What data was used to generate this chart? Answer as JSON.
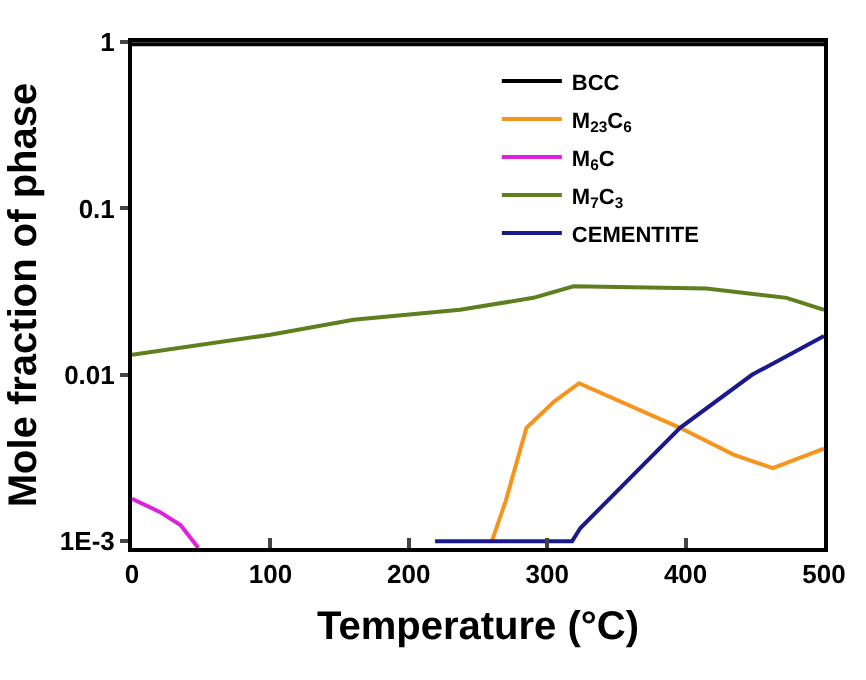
{
  "chart_data": {
    "type": "line",
    "xlabel": "Temperature (°C)",
    "ylabel": "Mole fraction of phase",
    "log": "y",
    "xlim": [
      0,
      500
    ],
    "xticks": [
      0,
      100,
      200,
      300,
      400,
      500
    ],
    "ylim": [
      0.00091,
      1
    ],
    "yticks": [
      {
        "value": 0.001,
        "label": "1E-3"
      },
      0.01,
      0.1,
      1
    ],
    "grid": false,
    "legend": "top right",
    "marker": "none",
    "line_style": "solid",
    "series": [
      {
        "name": "BCC",
        "color": "#000000",
        "x": [
          0,
          500
        ],
        "values": [
          0.97,
          0.97
        ]
      },
      {
        "name": "M$_{23}$C$_{6}$",
        "color": "#f7941d",
        "x": [
          260,
          270,
          285,
          305,
          323,
          396,
          435,
          463,
          500
        ],
        "values": [
          0.001,
          0.00174,
          0.0048,
          0.0069,
          0.0089,
          0.0048,
          0.0033,
          0.00275,
          0.0036
        ]
      },
      {
        "name": "M$_{6}$C",
        "color": "#e020e0",
        "x": [
          0,
          20,
          35,
          48
        ],
        "values": [
          0.0018,
          0.0015,
          0.00125,
          0.00091
        ]
      },
      {
        "name": "M$_{7}$C$_{3}$",
        "color": "#5f7f1f",
        "x": [
          0,
          100,
          160,
          237,
          290,
          319,
          415,
          473,
          500
        ],
        "values": [
          0.0132,
          0.0174,
          0.0214,
          0.0246,
          0.029,
          0.034,
          0.033,
          0.029,
          0.0246
        ]
      },
      {
        "name": "CEMENTITE",
        "color": "#1a1a8c",
        "x": [
          219,
          318,
          324,
          396,
          448,
          500
        ],
        "values": [
          0.001,
          0.001,
          0.0012,
          0.0048,
          0.01,
          0.0171
        ]
      }
    ]
  }
}
